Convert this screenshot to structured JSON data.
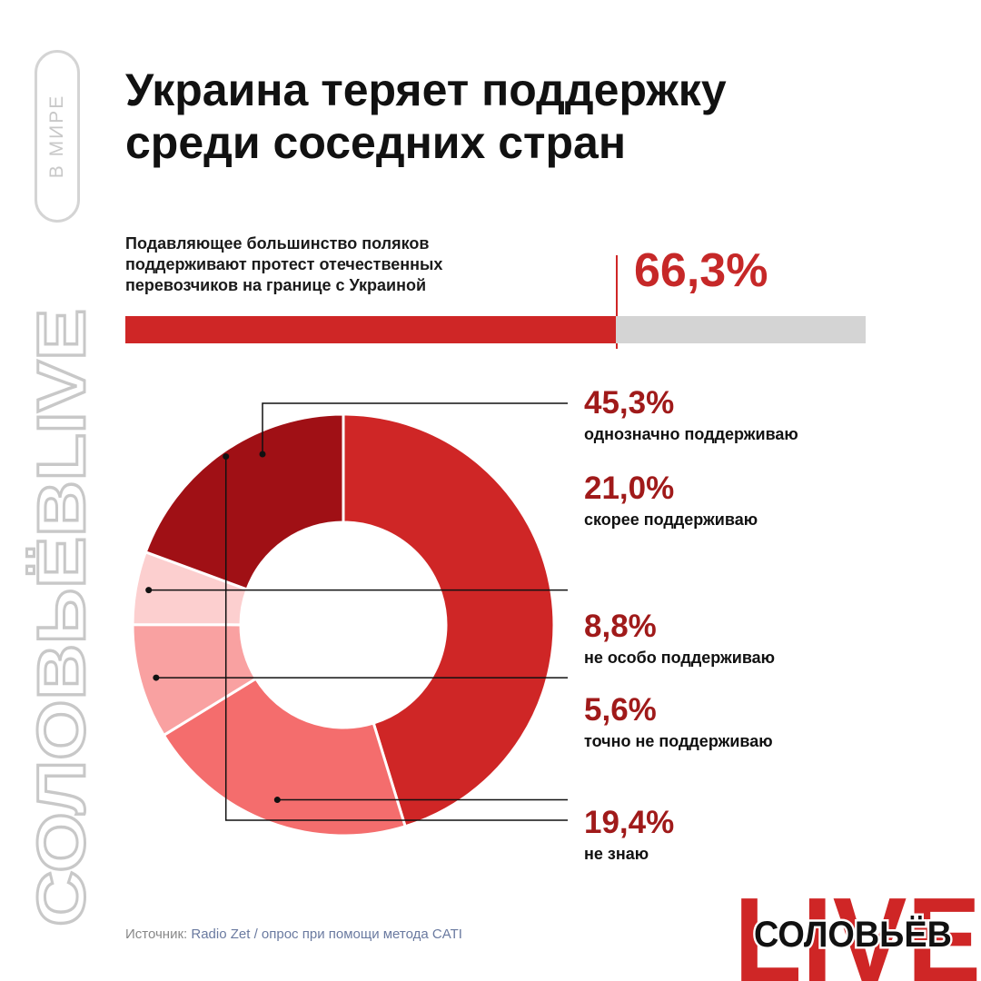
{
  "side_tag": "В МИРЕ",
  "side_brand": "СОЛОВЬЁВLIVE",
  "title_line1": "Украина теряет поддержку",
  "title_line2": "среди соседних стран",
  "description": {
    "line1": "Подавляющее большинство поляков",
    "line2": "поддерживают протест отечественных",
    "line3": "перевозчиков на границе с Украиной"
  },
  "headline_value": "66,3%",
  "headline_fraction": 0.663,
  "chart_data": {
    "type": "pie",
    "start_angle_deg": 0,
    "slices": [
      {
        "value": 45.3,
        "label": "45,3%",
        "name": "однозначно поддерживаю",
        "color": "#cf2626"
      },
      {
        "value": 21.0,
        "label": "21,0%",
        "name": "скорее поддерживаю",
        "color": "#f46d6d"
      },
      {
        "value": 8.8,
        "label": "8,8%",
        "name": "не особо поддерживаю",
        "color": "#f9a1a1"
      },
      {
        "value": 5.6,
        "label": "5,6%",
        "name": "точно не поддерживаю",
        "color": "#fccfcf"
      },
      {
        "value": 19.4,
        "label": "19,4%",
        "name": "не знаю",
        "color": "#a01015"
      }
    ]
  },
  "colors": {
    "accent": "#cf2626",
    "dark": "#a01a1a",
    "track": "#d4d4d4"
  },
  "source": {
    "label": "Источник:",
    "text": "Radio Zet / опрос при помощи метода CATI"
  },
  "logo": {
    "big": "LIVE",
    "small": "СОЛОВЬЁВ"
  }
}
